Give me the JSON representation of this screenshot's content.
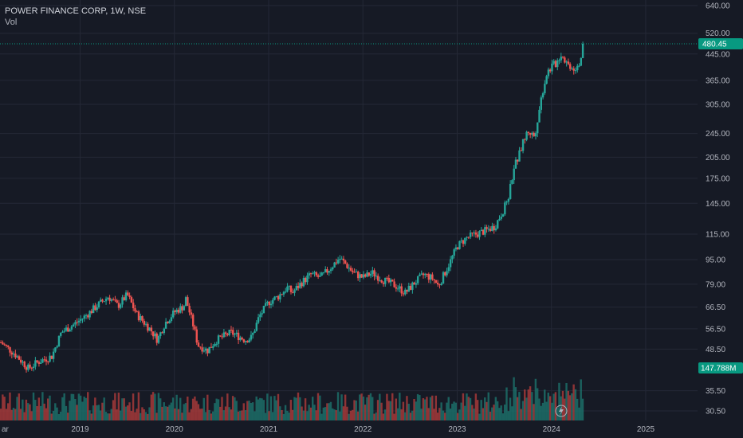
{
  "header": {
    "title": "POWER FINANCE CORP, 1W, NSE",
    "volume_label": "Vol"
  },
  "colors": {
    "background": "#161a25",
    "grid": "#242836",
    "up": "#26a69a",
    "down": "#ef5350",
    "up_volume": "#1c6f69",
    "down_volume": "#a53a3a",
    "price_badge": "#089981",
    "text": "#b2b5be"
  },
  "chart_data": {
    "type": "candlestick",
    "symbol": "POWER FINANCE CORP",
    "interval": "1W",
    "exchange": "NSE",
    "scale": "log",
    "y_ticks": [
      640.0,
      520.0,
      445.0,
      365.0,
      305.0,
      245.0,
      205.0,
      175.0,
      145.0,
      115.0,
      95.0,
      79.0,
      66.5,
      56.5,
      48.5,
      35.5,
      30.5
    ],
    "y_tick_labels": [
      "640.00",
      "520.00",
      "445.00",
      "365.00",
      "305.00",
      "245.00",
      "205.00",
      "175.00",
      "145.00",
      "115.00",
      "95.00",
      "79.00",
      "66.50",
      "56.50",
      "48.50",
      "35.50",
      "30.50"
    ],
    "x_tick_labels": [
      "ar",
      "2019",
      "2020",
      "2021",
      "2022",
      "2023",
      "2024",
      "2025"
    ],
    "x_tick_years": [
      2018.17,
      2019.0,
      2020.0,
      2021.0,
      2022.0,
      2023.0,
      2024.0,
      2025.0
    ],
    "x_range": [
      2018.15,
      2025.55
    ],
    "last_price": 480.45,
    "last_price_label": "480.45",
    "last_volume_label": "147.788M",
    "price_path": [
      [
        2018.16,
        51
      ],
      [
        2018.3,
        47
      ],
      [
        2018.45,
        42
      ],
      [
        2018.55,
        44
      ],
      [
        2018.7,
        46
      ],
      [
        2018.8,
        55
      ],
      [
        2018.92,
        58
      ],
      [
        2019.05,
        62
      ],
      [
        2019.2,
        68
      ],
      [
        2019.3,
        72
      ],
      [
        2019.4,
        67
      ],
      [
        2019.5,
        73
      ],
      [
        2019.6,
        63
      ],
      [
        2019.75,
        56
      ],
      [
        2019.82,
        52
      ],
      [
        2019.9,
        59
      ],
      [
        2020.0,
        64
      ],
      [
        2020.1,
        67
      ],
      [
        2020.12,
        71
      ],
      [
        2020.2,
        58
      ],
      [
        2020.25,
        50
      ],
      [
        2020.35,
        48
      ],
      [
        2020.45,
        52
      ],
      [
        2020.6,
        55
      ],
      [
        2020.75,
        52
      ],
      [
        2020.82,
        53
      ],
      [
        2020.9,
        62
      ],
      [
        2021.0,
        69
      ],
      [
        2021.1,
        72
      ],
      [
        2021.2,
        77
      ],
      [
        2021.25,
        74
      ],
      [
        2021.35,
        80
      ],
      [
        2021.45,
        85
      ],
      [
        2021.55,
        83
      ],
      [
        2021.65,
        89
      ],
      [
        2021.75,
        96
      ],
      [
        2021.8,
        93
      ],
      [
        2021.9,
        86
      ],
      [
        2022.0,
        83
      ],
      [
        2022.1,
        86
      ],
      [
        2022.2,
        82
      ],
      [
        2022.35,
        78
      ],
      [
        2022.45,
        74
      ],
      [
        2022.55,
        80
      ],
      [
        2022.65,
        85
      ],
      [
        2022.75,
        82
      ],
      [
        2022.8,
        78
      ],
      [
        2022.9,
        90
      ],
      [
        2023.0,
        105
      ],
      [
        2023.1,
        112
      ],
      [
        2023.2,
        115
      ],
      [
        2023.3,
        118
      ],
      [
        2023.4,
        122
      ],
      [
        2023.5,
        140
      ],
      [
        2023.55,
        155
      ],
      [
        2023.6,
        190
      ],
      [
        2023.65,
        205
      ],
      [
        2023.7,
        230
      ],
      [
        2023.75,
        250
      ],
      [
        2023.82,
        240
      ],
      [
        2023.9,
        330
      ],
      [
        2023.95,
        385
      ],
      [
        2024.0,
        405
      ],
      [
        2024.05,
        415
      ],
      [
        2024.1,
        445
      ],
      [
        2024.18,
        410
      ],
      [
        2024.25,
        400
      ],
      [
        2024.3,
        420
      ],
      [
        2024.35,
        480.45
      ]
    ]
  }
}
